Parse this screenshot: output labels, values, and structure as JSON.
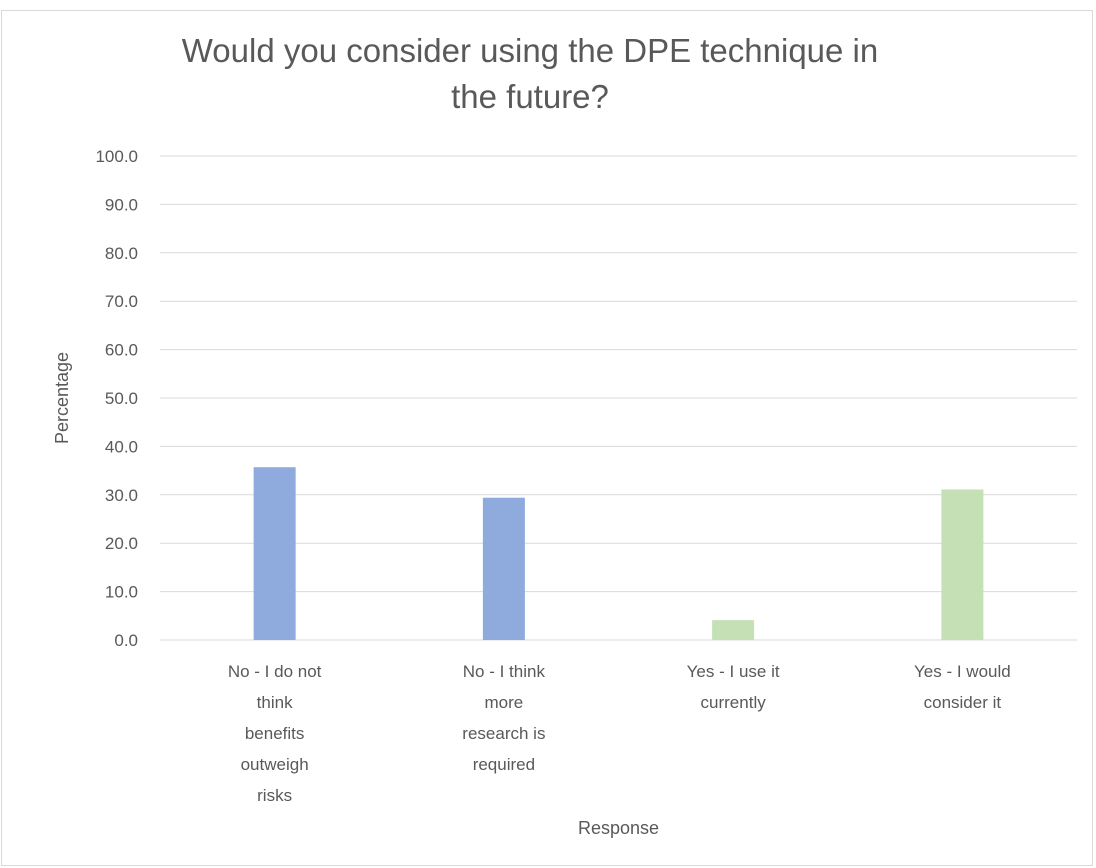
{
  "chart_data": {
    "type": "bar",
    "title": "Would you consider using the DPE technique in the future?",
    "xlabel": "Response",
    "ylabel": "Percentage",
    "ylim": [
      0,
      100
    ],
    "yticks": [
      "0.0",
      "10.0",
      "20.0",
      "30.0",
      "40.0",
      "50.0",
      "60.0",
      "70.0",
      "80.0",
      "90.0",
      "100.0"
    ],
    "grid": true,
    "categories": [
      "No - I do not think benefits outweigh risks",
      "No - I think more research is required",
      "Yes - I use it currently",
      "Yes - I would consider it"
    ],
    "category_label_lines": [
      [
        "No - I do not",
        "think",
        "benefits",
        "outweigh",
        "risks"
      ],
      [
        "No - I think",
        "more",
        "research is",
        "required"
      ],
      [
        "Yes - I use it",
        "currently"
      ],
      [
        "Yes - I would",
        "consider it"
      ]
    ],
    "values": [
      35.7,
      29.4,
      4.1,
      31.1
    ],
    "bar_colors": [
      "#8faadc",
      "#8faadc",
      "#c5e0b4",
      "#c5e0b4"
    ]
  }
}
